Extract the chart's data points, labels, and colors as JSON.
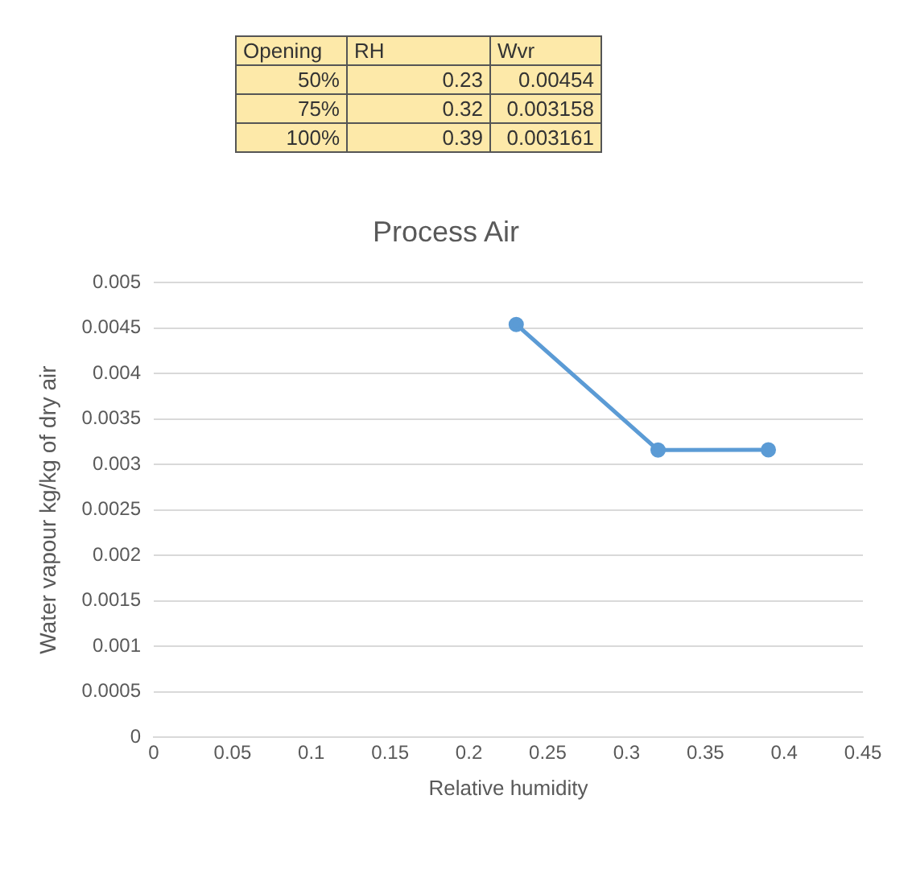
{
  "chart_data": {
    "type": "line",
    "title": "Process Air",
    "xlabel": "Relative humidity",
    "ylabel": "Water vapour kg/kg of dry air",
    "x": [
      0.23,
      0.32,
      0.39
    ],
    "values": [
      0.00454,
      0.003158,
      0.003161
    ],
    "color": "#5b9bd5",
    "xlim": [
      0,
      0.45
    ],
    "xticks": [
      0,
      0.05,
      0.1,
      0.15,
      0.2,
      0.25,
      0.3,
      0.35,
      0.4,
      0.45
    ],
    "ylim": [
      0,
      0.005
    ],
    "yticks": [
      0,
      0.0005,
      0.001,
      0.0015,
      0.002,
      0.0025,
      0.003,
      0.0035,
      0.004,
      0.0045,
      0.005
    ],
    "grid": "y",
    "marker": "circle",
    "line_style": "solid",
    "legend": false,
    "annotations": [
      "Opening",
      "RH",
      "Wvr",
      "50%",
      "0.23",
      "0.00454",
      "75%",
      "0.32",
      "0.003158",
      "100%",
      "0.39",
      "0.003161"
    ]
  }
}
